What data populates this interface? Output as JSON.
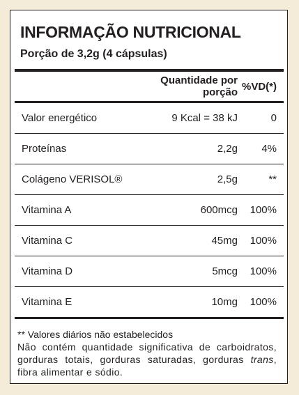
{
  "header": {
    "title": "INFORMAÇÃO NUTRICIONAL",
    "serving": "Porção de 3,2g (4 cápsulas)"
  },
  "table": {
    "columns": [
      "Quantidade por porção",
      "%VD(*)"
    ],
    "rows": [
      [
        "Valor energético",
        "9 Kcal = 38 kJ",
        "0"
      ],
      [
        "Proteínas",
        "2,2g",
        "4%"
      ],
      [
        "Colágeno VERISOL®",
        "2,5g",
        "**"
      ],
      [
        "Vitamina A",
        "600mcg",
        "100%"
      ],
      [
        "Vitamina C",
        "45mg",
        "100%"
      ],
      [
        "Vitamina D",
        "5mcg",
        "100%"
      ],
      [
        "Vitamina E",
        "10mg",
        "100%"
      ]
    ]
  },
  "footnotes": {
    "note": "** Valores diários não estabelecidos",
    "text_before": "Não contém quantidade significativa de carboidratos, gorduras totais, gorduras saturadas, gorduras ",
    "text_italic": "trans",
    "text_after": ", fibra alimentar e sódio."
  }
}
